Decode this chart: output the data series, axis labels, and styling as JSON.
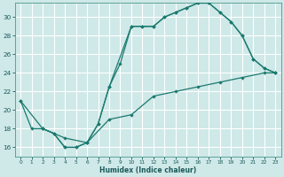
{
  "xlabel": "Humidex (Indice chaleur)",
  "bg_color": "#cfe8e8",
  "grid_color": "#ffffff",
  "line_color": "#1a7a6e",
  "xlim": [
    -0.5,
    23.5
  ],
  "ylim": [
    15.0,
    31.5
  ],
  "xticks": [
    0,
    1,
    2,
    3,
    4,
    5,
    6,
    7,
    8,
    9,
    10,
    11,
    12,
    13,
    14,
    15,
    16,
    17,
    18,
    19,
    20,
    21,
    22,
    23
  ],
  "yticks": [
    16,
    18,
    20,
    22,
    24,
    26,
    28,
    30
  ],
  "line1_x": [
    0,
    1,
    2,
    3,
    4,
    5,
    6,
    7,
    8,
    9,
    10,
    11,
    12,
    13,
    14,
    15,
    16,
    17,
    18,
    19,
    20,
    21,
    22,
    23
  ],
  "line1_y": [
    21.0,
    18.0,
    18.0,
    17.5,
    16.0,
    16.0,
    16.5,
    18.5,
    22.5,
    25.0,
    29.0,
    29.0,
    29.0,
    30.0,
    30.5,
    31.0,
    31.5,
    31.5,
    30.5,
    29.5,
    28.0,
    25.5,
    24.5,
    24.0
  ],
  "line2_x": [
    0,
    2,
    4,
    6,
    8,
    10,
    12,
    14,
    16,
    18,
    20,
    22,
    23
  ],
  "line2_y": [
    21.0,
    18.0,
    17.0,
    16.5,
    19.0,
    19.5,
    21.5,
    22.0,
    22.5,
    23.0,
    23.5,
    24.0,
    24.0
  ],
  "line3_x": [
    2,
    3,
    4,
    5,
    6,
    7,
    8,
    10,
    11,
    12,
    13,
    14,
    15,
    16,
    17,
    18,
    19,
    20,
    21,
    22,
    23
  ],
  "line3_y": [
    18.0,
    17.5,
    16.0,
    16.0,
    16.5,
    18.5,
    22.5,
    29.0,
    29.0,
    29.0,
    30.0,
    30.5,
    31.0,
    31.5,
    31.5,
    30.5,
    29.5,
    28.0,
    25.5,
    24.5,
    24.0
  ]
}
